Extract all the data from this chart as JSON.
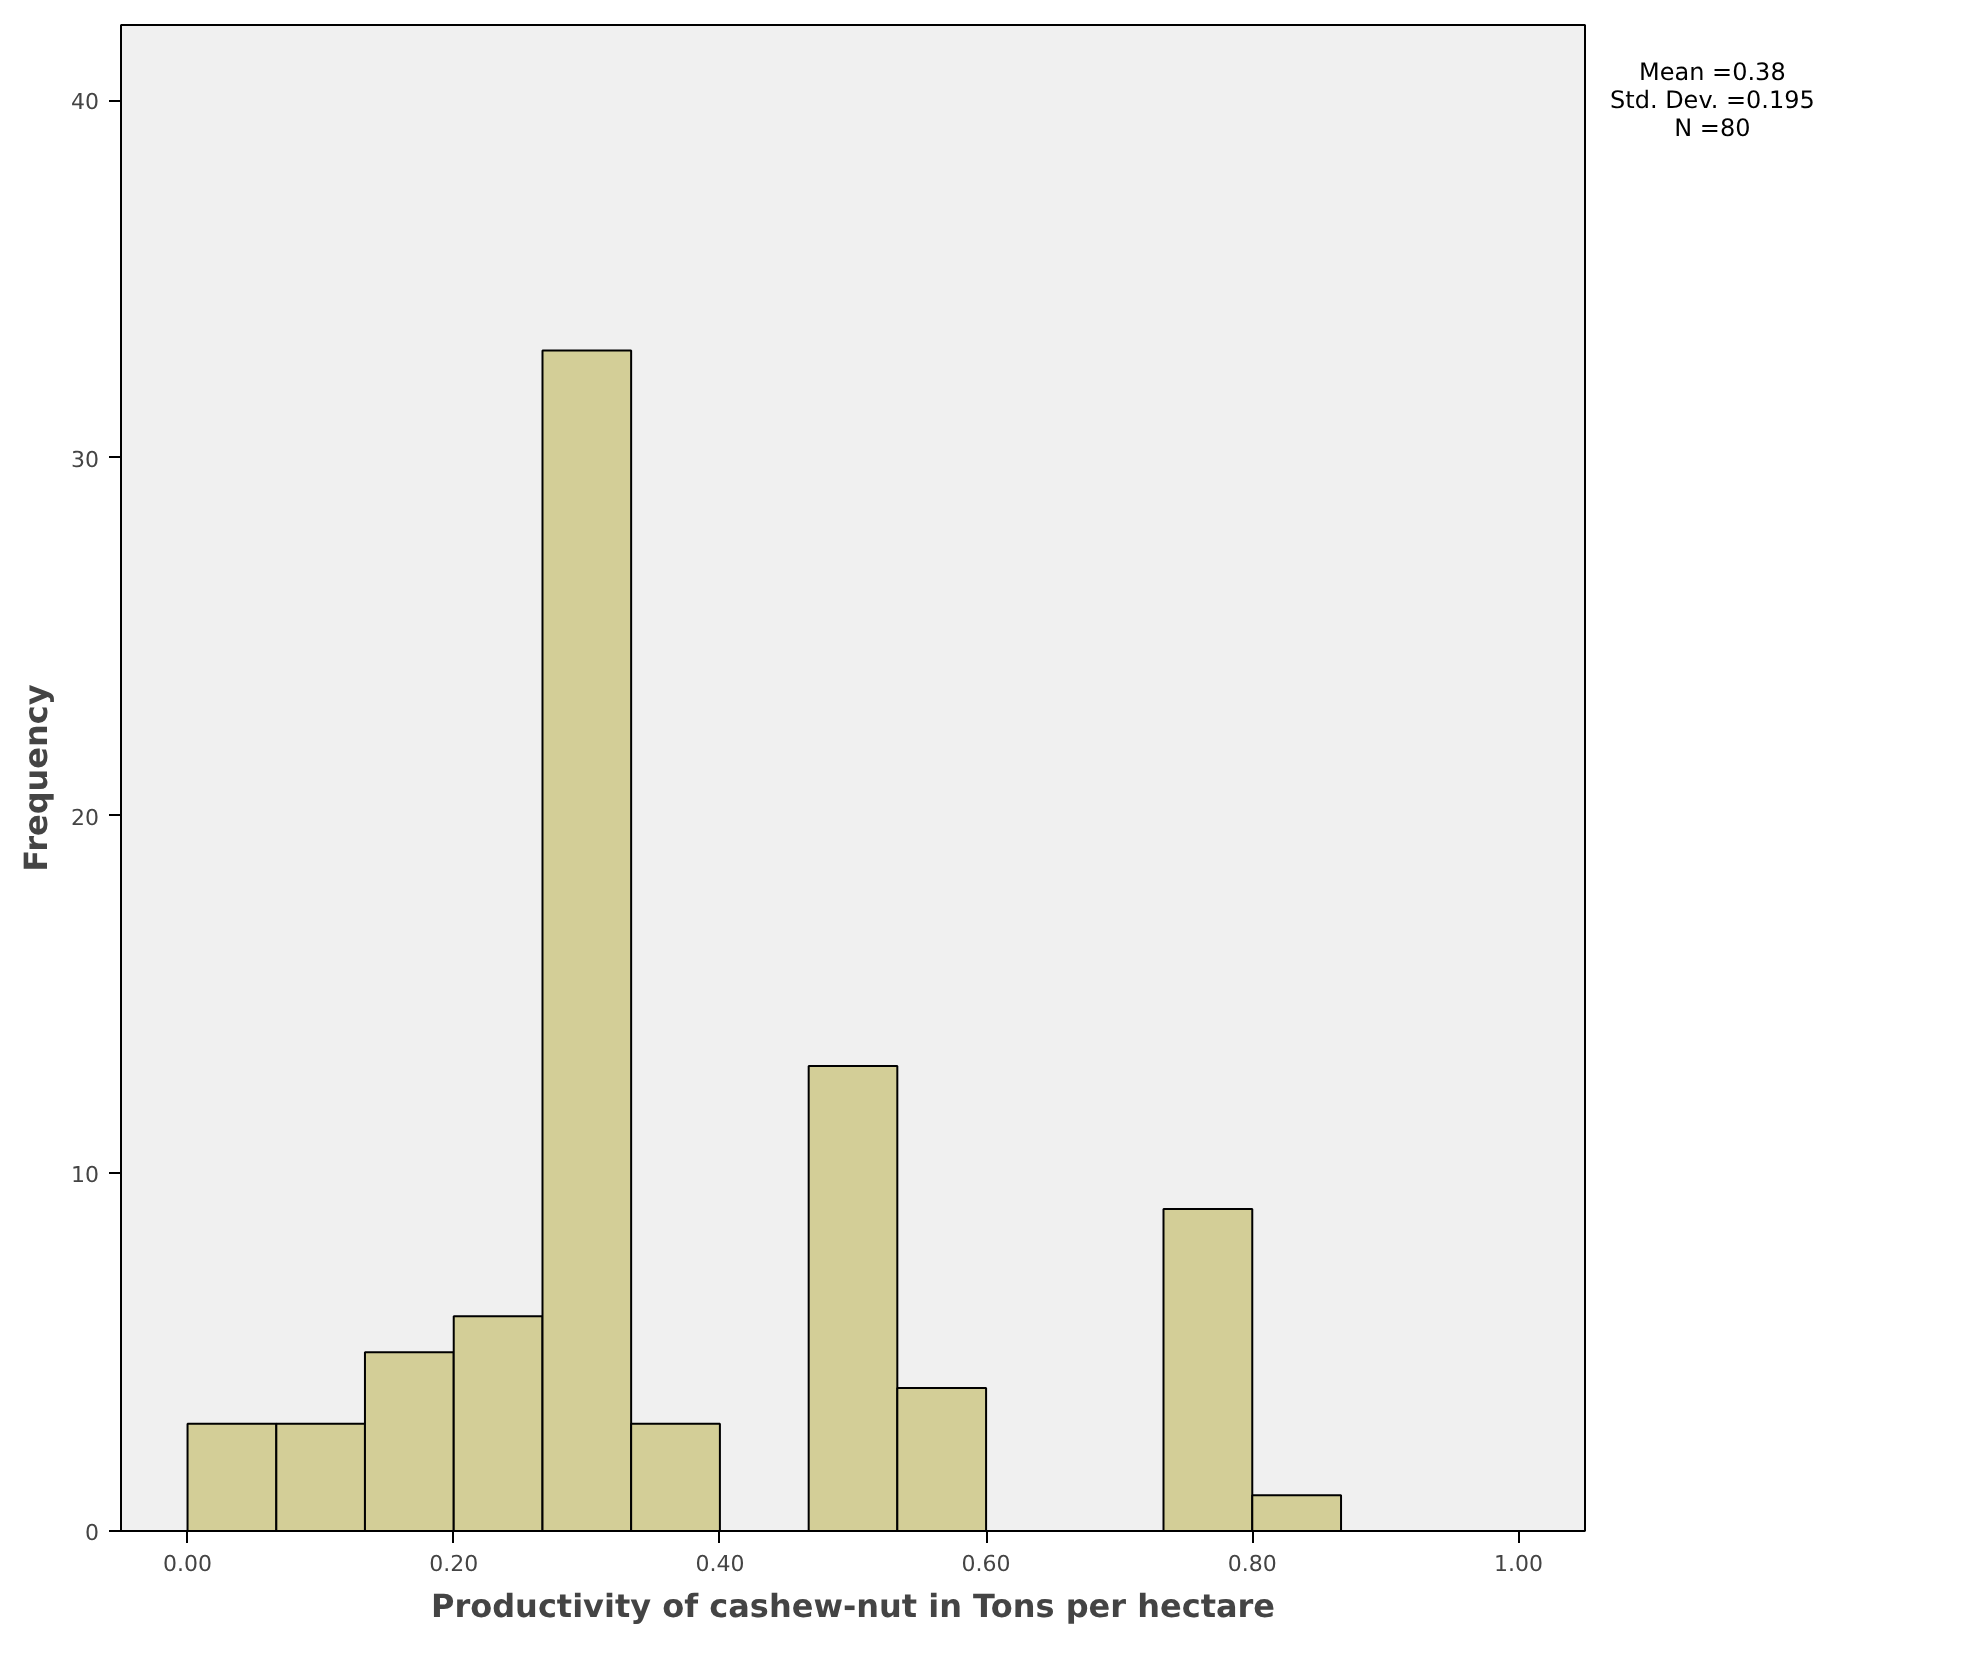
{
  "chart_data": {
    "type": "histogram",
    "xlabel": "Productivity of cashew-nut in Tons per hectare",
    "ylabel": "Frequency",
    "bins": [
      0,
      0.0667,
      0.1333,
      0.2,
      0.2667,
      0.3333,
      0.4,
      0.4667,
      0.5333,
      0.6,
      0.6667,
      0.7333,
      0.8,
      0.8667
    ],
    "values": [
      3,
      3,
      5,
      6,
      33,
      3,
      0,
      13,
      4,
      0,
      0,
      9,
      1
    ],
    "color": "#d3ce97",
    "xlim": [
      -0.05,
      1.05
    ],
    "ylim": [
      0,
      42.1
    ],
    "xticks": [
      {
        "value": 0,
        "label": "0.00"
      },
      {
        "value": 0.2,
        "label": "0.20"
      },
      {
        "value": 0.4,
        "label": "0.40"
      },
      {
        "value": 0.6,
        "label": "0.60"
      },
      {
        "value": 0.8,
        "label": "0.80"
      },
      {
        "value": 1,
        "label": "1.00"
      }
    ],
    "yticks": [
      0,
      10,
      20,
      30,
      40
    ],
    "annotations": [
      "Mean =0.38",
      "Std. Dev. =0.195",
      "N =80"
    ],
    "grid": false
  }
}
